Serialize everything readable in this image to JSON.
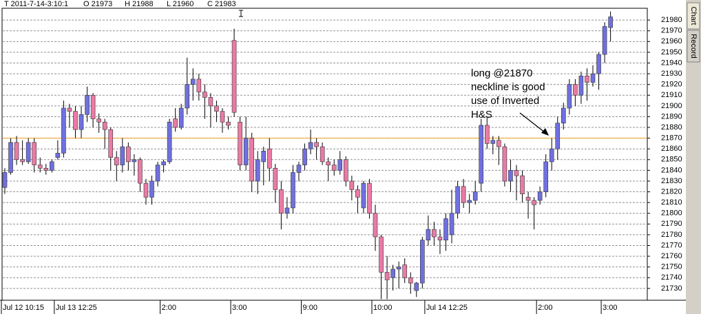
{
  "chart_data": {
    "type": "candlestick",
    "header": [
      "T 2011-7-14-3:10:1",
      "O 21973",
      "H 21988",
      "L 21960",
      "C 21983"
    ],
    "tabs": [
      "Chart",
      "Record"
    ],
    "annotation": [
      "long @21870",
      "neckline is good",
      "use of Inverted",
      "H&S"
    ],
    "reference_line": 21870,
    "reference_color": "#f5a623",
    "up_color": "#7070e0",
    "down_color": "#ea7aa6",
    "grid": true,
    "ylim": [
      21719,
      21991
    ],
    "yticks": [
      21730,
      21740,
      21750,
      21760,
      21770,
      21780,
      21790,
      21800,
      21810,
      21820,
      21830,
      21840,
      21850,
      21860,
      21870,
      21880,
      21890,
      21900,
      21910,
      21920,
      21930,
      21940,
      21950,
      21960,
      21970,
      21980
    ],
    "categories": [
      "Jul 12 10:15",
      null,
      null,
      null,
      null,
      null,
      null,
      null,
      null,
      "Jul 13 12:25",
      null,
      null,
      null,
      null,
      null,
      null,
      null,
      null,
      null,
      null,
      null,
      null,
      null,
      null,
      null,
      null,
      null,
      "2:00",
      null,
      null,
      null,
      null,
      null,
      null,
      null,
      null,
      null,
      null,
      null,
      "3:00",
      null,
      null,
      null,
      null,
      null,
      null,
      null,
      null,
      null,
      null,
      null,
      "9:00",
      null,
      null,
      null,
      null,
      null,
      null,
      null,
      null,
      null,
      null,
      null,
      "10:00",
      null,
      null,
      null,
      null,
      null,
      null,
      null,
      null,
      "Jul 14 12:25",
      null,
      null,
      null,
      null,
      null,
      null,
      null,
      null,
      null,
      null,
      null,
      null,
      null,
      null,
      null,
      null,
      null,
      null,
      "2:00",
      null,
      null,
      null,
      null,
      null,
      null,
      null,
      null,
      null,
      null,
      "3:00",
      null
    ],
    "open": [
      21824,
      21838,
      21866,
      21850,
      21848,
      21866,
      21845,
      21842,
      21840,
      21852,
      21856,
      21898,
      21895,
      21878,
      21892,
      21910,
      21888,
      21885,
      21878,
      21852,
      21845,
      21862,
      21848,
      21850,
      21828,
      21815,
      21830,
      21845,
      21848,
      21888,
      21880,
      21898,
      21920,
      21925,
      21913,
      21908,
      21900,
      21895,
      21885,
      21961,
      21885,
      21845,
      21870,
      21830,
      21848,
      21860,
      21842,
      21822,
      21800,
      21805,
      21838,
      21845,
      21860,
      21866,
      21862,
      21848,
      21845,
      21840,
      21850,
      21830,
      21822,
      21805,
      21828,
      21800,
      21778,
      21745,
      21740,
      21748,
      21752,
      21740,
      21728,
      21735,
      21775,
      21785,
      21778,
      21775,
      21780,
      21800,
      21825,
      21810,
      21812,
      21828,
      21882,
      21865,
      21868,
      21862,
      21830,
      21840,
      21835,
      21815,
      21812,
      21812,
      21820,
      21848,
      21860,
      21884,
      21898,
      21920,
      21910,
      21928,
      21922,
      21930,
      21948,
      21973
    ],
    "high": [
      21842,
      21870,
      21872,
      21868,
      21870,
      21870,
      21852,
      21846,
      21850,
      21868,
      21905,
      21902,
      21900,
      21900,
      21918,
      21912,
      21893,
      21888,
      21880,
      21858,
      21870,
      21866,
      21855,
      21852,
      21832,
      21835,
      21848,
      21850,
      21888,
      21898,
      21902,
      21945,
      21935,
      21930,
      21920,
      21912,
      21905,
      21898,
      21890,
      21972,
      21890,
      21890,
      21875,
      21858,
      21862,
      21870,
      21846,
      21830,
      21815,
      21845,
      21848,
      21865,
      21878,
      21870,
      21866,
      21852,
      21850,
      21858,
      21853,
      21835,
      21826,
      21830,
      21832,
      21808,
      21780,
      21760,
      21752,
      21755,
      21758,
      21745,
      21736,
      21778,
      21798,
      21792,
      21785,
      21800,
      21822,
      21830,
      21832,
      21818,
      21830,
      21888,
      21890,
      21872,
      21872,
      21865,
      21850,
      21845,
      21840,
      21820,
      21815,
      21825,
      21855,
      21870,
      21890,
      21903,
      21925,
      21925,
      21932,
      21935,
      21938,
      21950,
      21978,
      21988
    ],
    "low": [
      21818,
      21836,
      21845,
      21845,
      21846,
      21838,
      21838,
      21836,
      21838,
      21850,
      21852,
      21880,
      21870,
      21870,
      21885,
      21880,
      21875,
      21860,
      21840,
      21830,
      21838,
      21840,
      21835,
      21820,
      21808,
      21808,
      21825,
      21838,
      21846,
      21876,
      21878,
      21892,
      21905,
      21905,
      21888,
      21880,
      21885,
      21875,
      21878,
      21890,
      21840,
      21840,
      21820,
      21818,
      21826,
      21830,
      21810,
      21785,
      21795,
      21800,
      21830,
      21840,
      21855,
      21850,
      21845,
      21830,
      21835,
      21836,
      21825,
      21812,
      21800,
      21800,
      21795,
      21765,
      21720,
      21720,
      21728,
      21730,
      21735,
      21725,
      21722,
      21730,
      21770,
      21770,
      21762,
      21765,
      21772,
      21795,
      21805,
      21800,
      21808,
      21820,
      21860,
      21855,
      21845,
      21825,
      21820,
      21812,
      21810,
      21795,
      21785,
      21808,
      21815,
      21840,
      21850,
      21878,
      21892,
      21900,
      21902,
      21905,
      21918,
      21915,
      21940,
      21960
    ],
    "close": [
      21838,
      21866,
      21850,
      21848,
      21866,
      21845,
      21842,
      21840,
      21848,
      21856,
      21898,
      21895,
      21878,
      21892,
      21910,
      21888,
      21885,
      21878,
      21852,
      21845,
      21862,
      21848,
      21850,
      21828,
      21815,
      21830,
      21845,
      21848,
      21885,
      21880,
      21898,
      21920,
      21925,
      21913,
      21908,
      21900,
      21895,
      21885,
      21882,
      21894,
      21845,
      21870,
      21830,
      21850,
      21858,
      21842,
      21822,
      21800,
      21805,
      21838,
      21845,
      21860,
      21866,
      21862,
      21848,
      21845,
      21840,
      21850,
      21830,
      21822,
      21815,
      21828,
      21800,
      21778,
      21745,
      21738,
      21748,
      21750,
      21740,
      21735,
      21735,
      21775,
      21785,
      21778,
      21775,
      21795,
      21800,
      21825,
      21810,
      21812,
      21820,
      21882,
      21865,
      21868,
      21862,
      21830,
      21840,
      21835,
      21818,
      21812,
      21808,
      21820,
      21848,
      21860,
      21884,
      21898,
      21920,
      21910,
      21928,
      21922,
      21930,
      21948,
      21974,
      21983
    ]
  }
}
